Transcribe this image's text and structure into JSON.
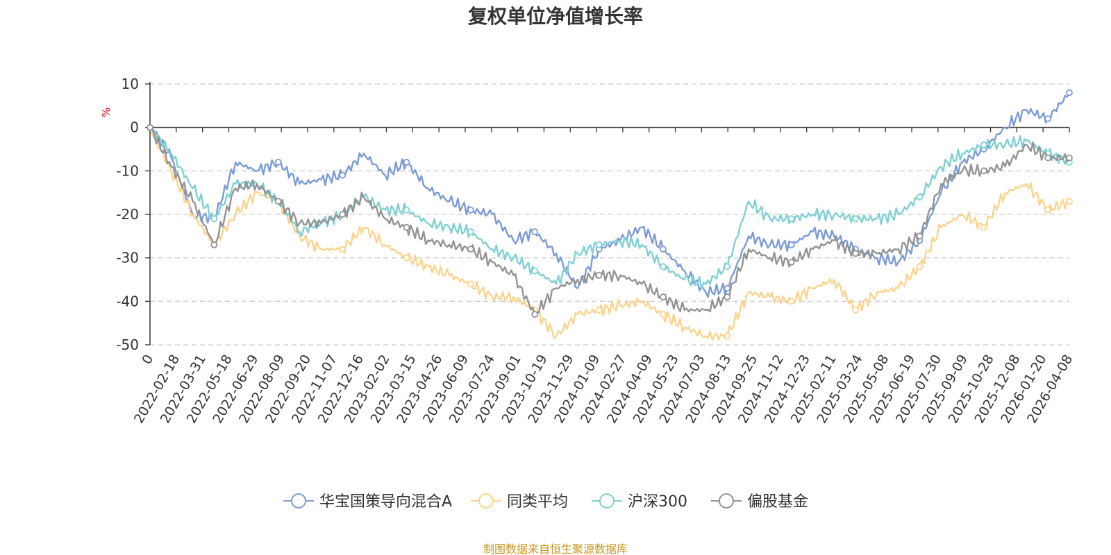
{
  "chart_data": {
    "type": "line",
    "title": "复权单位净值增长率",
    "ylabel": "%",
    "ylim": [
      -50,
      10
    ],
    "yticks": [
      10,
      0,
      -10,
      -20,
      -30,
      -40,
      -50
    ],
    "grid": true,
    "legend_position": "bottom-center",
    "x_tick_labels": [
      "0",
      "2022-02-18",
      "2022-03-31",
      "2022-05-18",
      "2022-06-29",
      "2022-08-09",
      "2022-09-20",
      "2022-11-07",
      "2022-12-16",
      "2023-02-02",
      "2023-03-15",
      "2023-04-26",
      "2023-06-09",
      "2023-07-24",
      "2023-09-01",
      "2023-10-19",
      "2023-11-29",
      "2024-01-09",
      "2024-02-27",
      "2024-04-09",
      "2024-05-23",
      "2024-07-03",
      "2024-08-13",
      "2024-09-25",
      "2024-11-12",
      "2024-12-23",
      "2025-02-11",
      "2025-03-24",
      "2025-05-08",
      "2025-06-19",
      "2025-07-30",
      "2025-09-09",
      "2025-10-28",
      "2025-12-08",
      "2026-01-20",
      "2026-04-08"
    ],
    "series": [
      {
        "name": "华宝国策导向混合A",
        "color": "#7b9bd6",
        "values": [
          0,
          -7,
          -20,
          -21,
          -8,
          -10,
          -8,
          -13,
          -12,
          -11,
          -6,
          -11,
          -8,
          -14,
          -17,
          -19,
          -20,
          -26,
          -24,
          -29,
          -37,
          -28,
          -26,
          -23,
          -28,
          -33,
          -38,
          -37,
          -25,
          -27,
          -27,
          -24,
          -25,
          -28,
          -30,
          -31,
          -26,
          -15,
          -8,
          -5,
          0,
          4,
          2,
          8
        ]
      },
      {
        "name": "同类平均",
        "color": "#fcd38c",
        "values": [
          0,
          -10,
          -20,
          -27,
          -20,
          -15,
          -17,
          -25,
          -28,
          -28,
          -23,
          -27,
          -30,
          -32,
          -34,
          -36,
          -39,
          -39,
          -42,
          -48,
          -43,
          -42,
          -41,
          -40,
          -43,
          -46,
          -48,
          -48,
          -38,
          -39,
          -40,
          -37,
          -35,
          -42,
          -38,
          -37,
          -32,
          -23,
          -20,
          -23,
          -15,
          -13,
          -19,
          -17
        ]
      },
      {
        "name": "沪深300",
        "color": "#7fd0d4",
        "values": [
          0,
          -6,
          -14,
          -21,
          -13,
          -13,
          -17,
          -24,
          -22,
          -20,
          -16,
          -19,
          -19,
          -22,
          -23,
          -24,
          -28,
          -30,
          -33,
          -36,
          -29,
          -27,
          -26,
          -27,
          -32,
          -35,
          -36,
          -32,
          -17,
          -21,
          -21,
          -20,
          -20,
          -21,
          -21,
          -20,
          -16,
          -9,
          -6,
          -4,
          -4,
          -3,
          -6,
          -8
        ]
      },
      {
        "name": "偏股基金",
        "color": "#939393",
        "values": [
          0,
          -9,
          -17,
          -27,
          -14,
          -13,
          -17,
          -22,
          -22,
          -20,
          -16,
          -21,
          -23,
          -26,
          -27,
          -28,
          -31,
          -34,
          -43,
          -37,
          -35,
          -34,
          -34,
          -36,
          -39,
          -42,
          -42,
          -39,
          -28,
          -30,
          -31,
          -28,
          -26,
          -29,
          -29,
          -28,
          -25,
          -13,
          -10,
          -10,
          -9,
          -4,
          -7,
          -7
        ]
      }
    ]
  },
  "source_text": "制图数据来自恒生聚源数据库"
}
